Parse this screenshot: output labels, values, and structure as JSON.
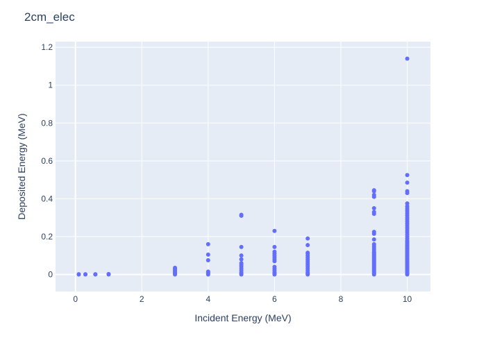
{
  "chart_data": {
    "type": "scatter",
    "title": "2cm_elec",
    "xlabel": "Incident Energy (MeV)",
    "ylabel": "Deposited Energy (MeV)",
    "xlim": [
      -0.6,
      10.7
    ],
    "ylim": [
      -0.09,
      1.23
    ],
    "x_ticks": [
      0,
      2,
      4,
      6,
      8,
      10
    ],
    "y_ticks": [
      0,
      0.2,
      0.4,
      0.6,
      0.8,
      1,
      1.2
    ],
    "x_tick_labels": [
      "0",
      "2",
      "4",
      "6",
      "8",
      "10"
    ],
    "y_tick_labels": [
      "0",
      "0.2",
      "0.4",
      "0.6",
      "0.8",
      "1",
      "1.2"
    ],
    "grid": true,
    "marker_color": "#636efa",
    "series": [
      {
        "name": "",
        "points": [
          [
            0.1,
            0
          ],
          [
            0.1,
            0.001
          ],
          [
            0.3,
            0
          ],
          [
            0.3,
            0.001
          ],
          [
            0.6,
            0
          ],
          [
            0.6,
            0.001
          ],
          [
            1,
            0
          ],
          [
            1,
            0.002
          ],
          [
            3,
            0
          ],
          [
            3,
            0.005
          ],
          [
            3,
            0.01
          ],
          [
            3,
            0.015
          ],
          [
            3,
            0.02
          ],
          [
            3,
            0.025
          ],
          [
            3,
            0.03
          ],
          [
            3,
            0.035
          ],
          [
            4,
            0
          ],
          [
            4,
            0.005
          ],
          [
            4,
            0.01
          ],
          [
            4,
            0.015
          ],
          [
            4,
            0.075
          ],
          [
            4,
            0.105
          ],
          [
            4,
            0.16
          ],
          [
            5,
            0
          ],
          [
            5,
            0.005
          ],
          [
            5,
            0.01
          ],
          [
            5,
            0.02
          ],
          [
            5,
            0.03
          ],
          [
            5,
            0.04
          ],
          [
            5,
            0.05
          ],
          [
            5,
            0.06
          ],
          [
            5,
            0.08
          ],
          [
            5,
            0.1
          ],
          [
            5,
            0.145
          ],
          [
            5,
            0.31
          ],
          [
            5,
            0.315
          ],
          [
            6,
            0
          ],
          [
            6,
            0.005
          ],
          [
            6,
            0.01
          ],
          [
            6,
            0.02
          ],
          [
            6,
            0.03
          ],
          [
            6,
            0.04
          ],
          [
            6,
            0.07
          ],
          [
            6,
            0.08
          ],
          [
            6,
            0.09
          ],
          [
            6,
            0.1
          ],
          [
            6,
            0.11
          ],
          [
            6,
            0.12
          ],
          [
            6,
            0.145
          ],
          [
            6,
            0.23
          ],
          [
            7,
            0
          ],
          [
            7,
            0.005
          ],
          [
            7,
            0.01
          ],
          [
            7,
            0.02
          ],
          [
            7,
            0.03
          ],
          [
            7,
            0.04
          ],
          [
            7,
            0.05
          ],
          [
            7,
            0.06
          ],
          [
            7,
            0.07
          ],
          [
            7,
            0.08
          ],
          [
            7,
            0.09
          ],
          [
            7,
            0.1
          ],
          [
            7,
            0.11
          ],
          [
            7,
            0.115
          ],
          [
            7,
            0.155
          ],
          [
            7,
            0.19
          ],
          [
            9,
            0
          ],
          [
            9,
            0.005
          ],
          [
            9,
            0.01
          ],
          [
            9,
            0.015
          ],
          [
            9,
            0.02
          ],
          [
            9,
            0.025
          ],
          [
            9,
            0.03
          ],
          [
            9,
            0.035
          ],
          [
            9,
            0.04
          ],
          [
            9,
            0.045
          ],
          [
            9,
            0.05
          ],
          [
            9,
            0.055
          ],
          [
            9,
            0.06
          ],
          [
            9,
            0.065
          ],
          [
            9,
            0.07
          ],
          [
            9,
            0.075
          ],
          [
            9,
            0.08
          ],
          [
            9,
            0.085
          ],
          [
            9,
            0.09
          ],
          [
            9,
            0.095
          ],
          [
            9,
            0.1
          ],
          [
            9,
            0.105
          ],
          [
            9,
            0.11
          ],
          [
            9,
            0.115
          ],
          [
            9,
            0.12
          ],
          [
            9,
            0.13
          ],
          [
            9,
            0.14
          ],
          [
            9,
            0.15
          ],
          [
            9,
            0.16
          ],
          [
            9,
            0.185
          ],
          [
            9,
            0.215
          ],
          [
            9,
            0.225
          ],
          [
            9,
            0.32
          ],
          [
            9,
            0.33
          ],
          [
            9,
            0.35
          ],
          [
            9,
            0.41
          ],
          [
            9,
            0.42
          ],
          [
            9,
            0.44
          ],
          [
            9,
            0.445
          ],
          [
            10,
            0
          ],
          [
            10,
            0.005
          ],
          [
            10,
            0.01
          ],
          [
            10,
            0.015
          ],
          [
            10,
            0.02
          ],
          [
            10,
            0.025
          ],
          [
            10,
            0.03
          ],
          [
            10,
            0.035
          ],
          [
            10,
            0.04
          ],
          [
            10,
            0.045
          ],
          [
            10,
            0.05
          ],
          [
            10,
            0.055
          ],
          [
            10,
            0.06
          ],
          [
            10,
            0.065
          ],
          [
            10,
            0.07
          ],
          [
            10,
            0.075
          ],
          [
            10,
            0.08
          ],
          [
            10,
            0.085
          ],
          [
            10,
            0.09
          ],
          [
            10,
            0.095
          ],
          [
            10,
            0.1
          ],
          [
            10,
            0.105
          ],
          [
            10,
            0.11
          ],
          [
            10,
            0.115
          ],
          [
            10,
            0.12
          ],
          [
            10,
            0.125
          ],
          [
            10,
            0.13
          ],
          [
            10,
            0.135
          ],
          [
            10,
            0.14
          ],
          [
            10,
            0.145
          ],
          [
            10,
            0.15
          ],
          [
            10,
            0.155
          ],
          [
            10,
            0.16
          ],
          [
            10,
            0.165
          ],
          [
            10,
            0.17
          ],
          [
            10,
            0.175
          ],
          [
            10,
            0.18
          ],
          [
            10,
            0.19
          ],
          [
            10,
            0.2
          ],
          [
            10,
            0.21
          ],
          [
            10,
            0.22
          ],
          [
            10,
            0.23
          ],
          [
            10,
            0.24
          ],
          [
            10,
            0.25
          ],
          [
            10,
            0.26
          ],
          [
            10,
            0.27
          ],
          [
            10,
            0.28
          ],
          [
            10,
            0.29
          ],
          [
            10,
            0.3
          ],
          [
            10,
            0.31
          ],
          [
            10,
            0.32
          ],
          [
            10,
            0.33
          ],
          [
            10,
            0.34
          ],
          [
            10,
            0.35
          ],
          [
            10,
            0.36
          ],
          [
            10,
            0.375
          ],
          [
            10,
            0.43
          ],
          [
            10,
            0.44
          ],
          [
            10,
            0.485
          ],
          [
            10,
            0.525
          ],
          [
            10,
            1.14
          ]
        ]
      }
    ]
  }
}
